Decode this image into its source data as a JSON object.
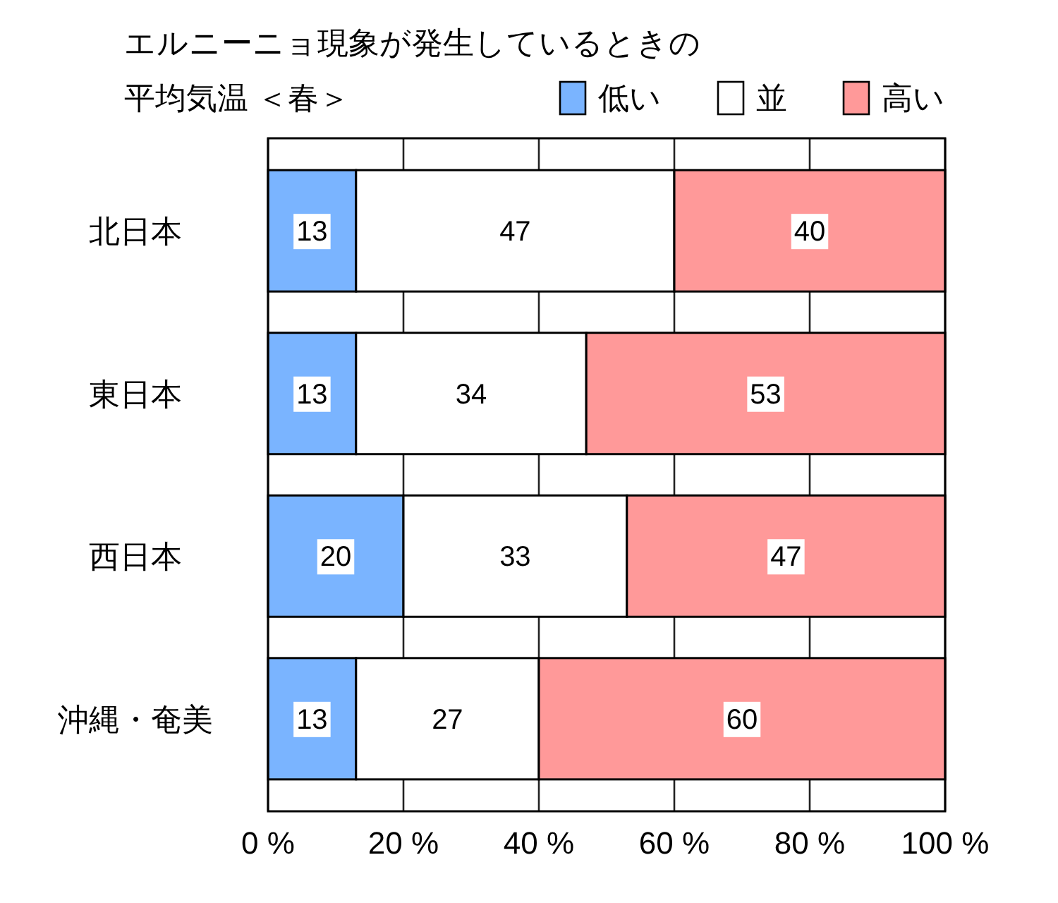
{
  "chart_data": {
    "type": "bar",
    "orientation": "horizontal",
    "stacked": true,
    "title": "エルニーニョ現象が発生しているときの",
    "subtitle": "平均気温 ＜春＞",
    "categories": [
      "北日本",
      "東日本",
      "西日本",
      "沖縄・奄美"
    ],
    "series": [
      {
        "name": "低い",
        "color": "#7ab4ff",
        "values": [
          13,
          13,
          20,
          13
        ]
      },
      {
        "name": "並",
        "color": "#ffffff",
        "values": [
          47,
          34,
          33,
          27
        ]
      },
      {
        "name": "高い",
        "color": "#ff9999",
        "values": [
          40,
          53,
          47,
          60
        ]
      }
    ],
    "xlim": [
      0,
      100
    ],
    "xticks": [
      {
        "value": 0,
        "label": "0 %"
      },
      {
        "value": 20,
        "label": "20 %"
      },
      {
        "value": 40,
        "label": "40 %"
      },
      {
        "value": 60,
        "label": "60 %"
      },
      {
        "value": 80,
        "label": "80 %"
      },
      {
        "value": 100,
        "label": "100 %"
      }
    ],
    "grid": "x",
    "legend": "top right",
    "data_labels": true
  }
}
